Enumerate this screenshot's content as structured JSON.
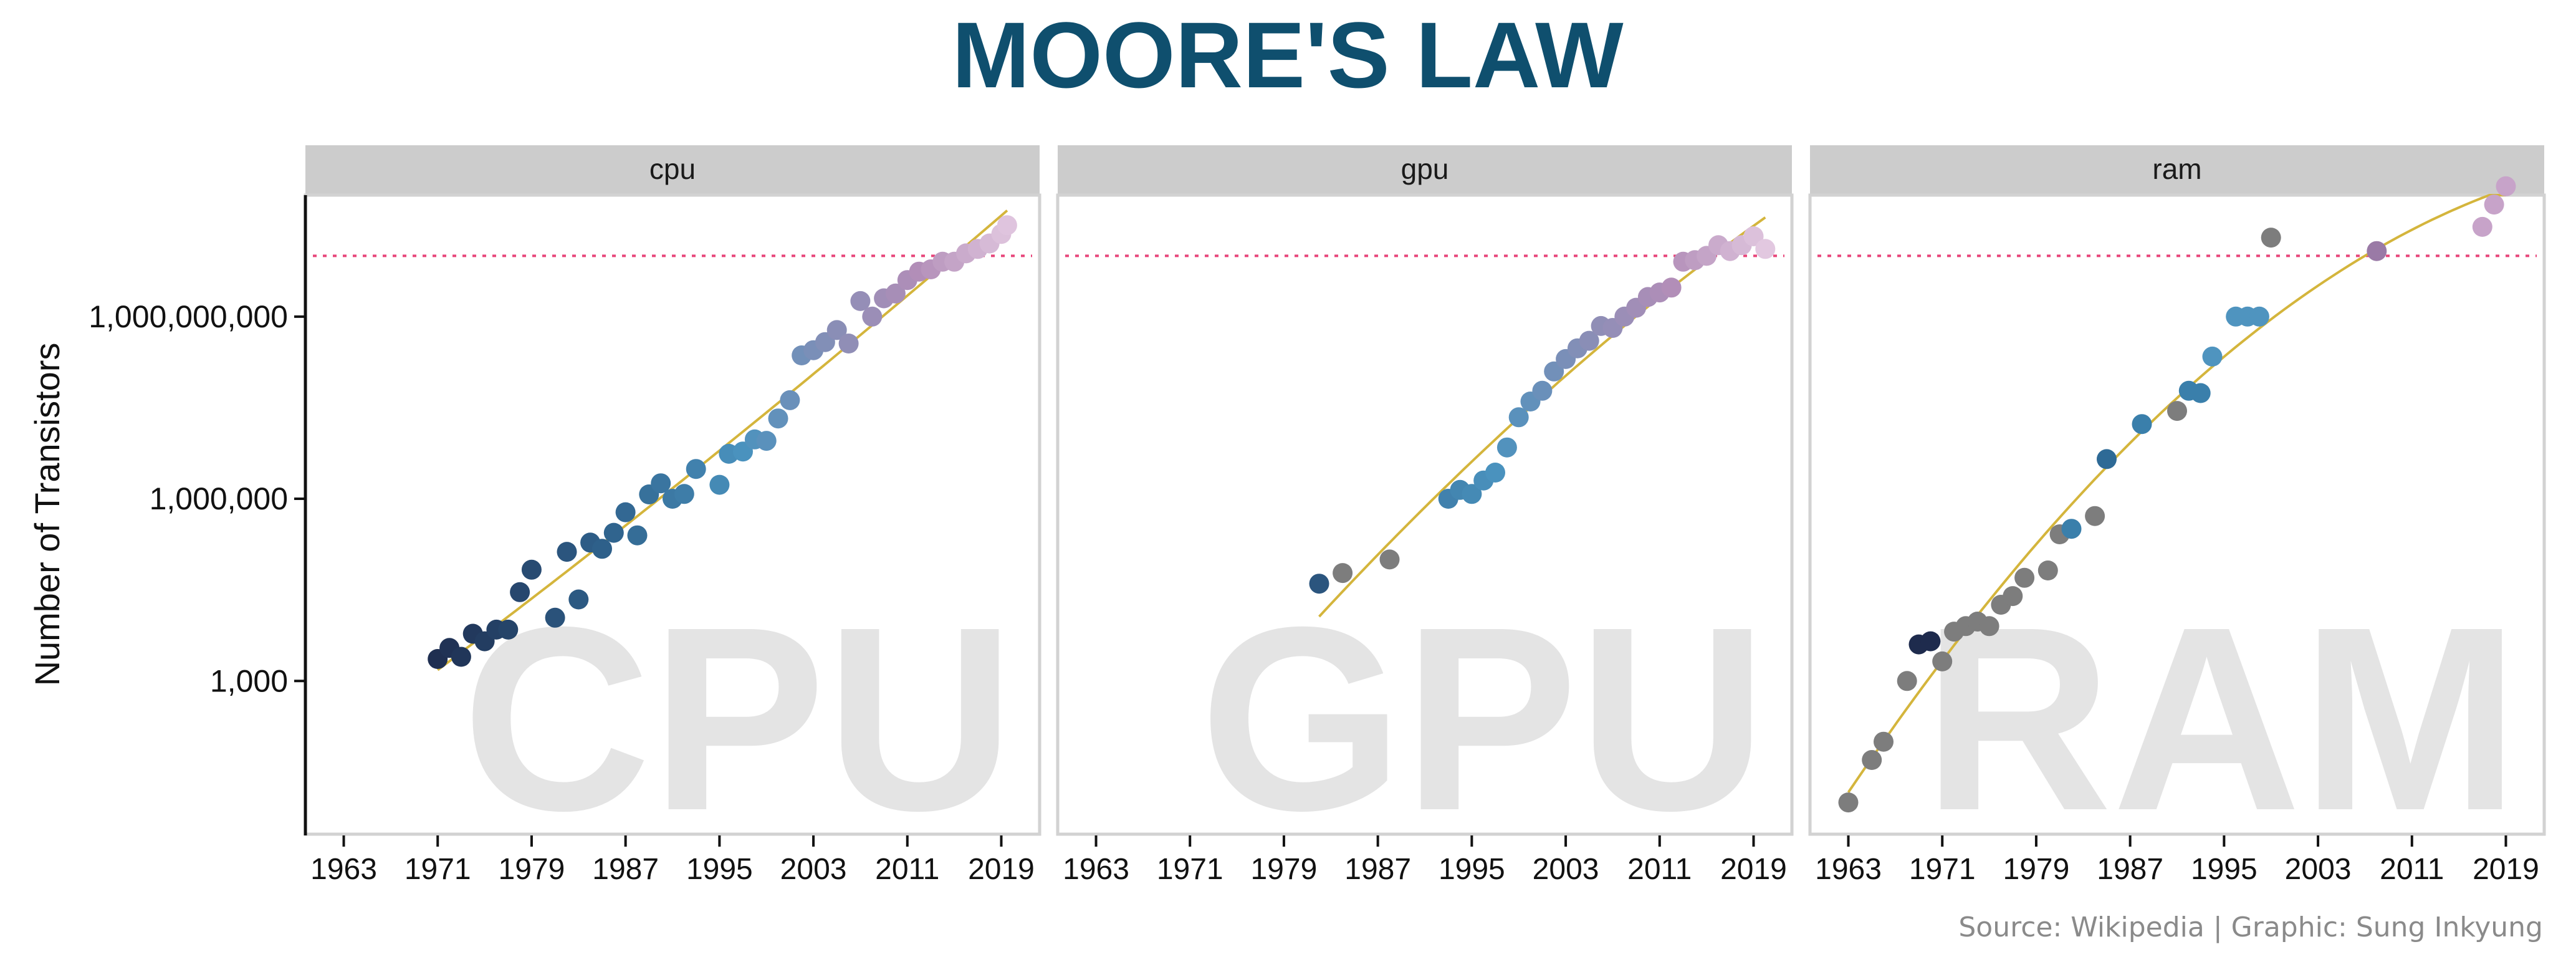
{
  "title": "MOORE'S LAW",
  "caption": "Source: Wikipedia | Graphic: Sung Inkyung",
  "colors": {
    "title": "#0f4f6e",
    "fit": "#d4b53c",
    "reference": "#e8457a",
    "strip": "#cccccc",
    "watermark": "#e4e4e4"
  },
  "chart_data": {
    "type": "scatter",
    "ylabel": "Number of Transistors",
    "xlabel": "",
    "y_scale": "log10",
    "ylim": [
      3,
      100000000000.0
    ],
    "xlim": [
      1960,
      2022
    ],
    "x_ticks": [
      1963,
      1971,
      1979,
      1987,
      1995,
      2003,
      2011,
      2019
    ],
    "y_ticks": [
      1000,
      1000000,
      1000000000
    ],
    "y_tick_labels": [
      "1,000",
      "1,000,000",
      "1,000,000,000"
    ],
    "reference_line": 10000000000,
    "panels": [
      {
        "name": "cpu",
        "watermark": "CPU",
        "points": [
          [
            1971,
            2300
          ],
          [
            1972,
            3500
          ],
          [
            1973,
            2500
          ],
          [
            1974,
            6000
          ],
          [
            1975,
            4500
          ],
          [
            1976,
            7000
          ],
          [
            1977,
            7000
          ],
          [
            1978,
            29000
          ],
          [
            1979,
            68000
          ],
          [
            1981,
            11000
          ],
          [
            1982,
            134000
          ],
          [
            1983,
            22000
          ],
          [
            1984,
            190000
          ],
          [
            1985,
            150000
          ],
          [
            1986,
            275000
          ],
          [
            1987,
            600000
          ],
          [
            1988,
            250000
          ],
          [
            1989,
            1180000
          ],
          [
            1990,
            1800000
          ],
          [
            1991,
            1000000
          ],
          [
            1992,
            1200000
          ],
          [
            1993,
            3100000
          ],
          [
            1995,
            1700000
          ],
          [
            1995.8,
            5500000
          ],
          [
            1997,
            6000000
          ],
          [
            1998,
            9500000
          ],
          [
            1999,
            9000000
          ],
          [
            2000,
            21000000
          ],
          [
            2001,
            42000000
          ],
          [
            2002,
            230000000
          ],
          [
            2003,
            280000000
          ],
          [
            2004,
            380000000
          ],
          [
            2005,
            600000000
          ],
          [
            2006,
            360000000
          ],
          [
            2007,
            1800000000
          ],
          [
            2008,
            1000000000
          ],
          [
            2009,
            2000000000
          ],
          [
            2010,
            2400000000
          ],
          [
            2011,
            4000000000
          ],
          [
            2012,
            5500000000
          ],
          [
            2013,
            6000000000
          ],
          [
            2014,
            8000000000
          ],
          [
            2015,
            8000000000
          ],
          [
            2016,
            11000000000
          ],
          [
            2017,
            13000000000
          ],
          [
            2018,
            16000000000
          ],
          [
            2019,
            23000000000
          ],
          [
            2019.5,
            32000000000
          ]
        ]
      },
      {
        "name": "gpu",
        "watermark": "GPU",
        "points": [
          [
            1982,
            40000
          ],
          [
            1984,
            60000
          ],
          [
            1988,
            100000
          ],
          [
            1993,
            1000000
          ],
          [
            1994,
            1400000
          ],
          [
            1995,
            1200000
          ],
          [
            1996,
            2000000
          ],
          [
            1997,
            2700000
          ],
          [
            1998,
            7000000
          ],
          [
            1999,
            22000000
          ],
          [
            2000,
            40000000
          ],
          [
            2001,
            60000000
          ],
          [
            2002,
            125000000
          ],
          [
            2003,
            200000000
          ],
          [
            2004,
            300000000
          ],
          [
            2005,
            400000000
          ],
          [
            2006,
            700000000
          ],
          [
            2007,
            650000000
          ],
          [
            2008,
            1000000000
          ],
          [
            2009,
            1400000000
          ],
          [
            2010,
            2100000000
          ],
          [
            2011,
            2500000000
          ],
          [
            2012,
            3000000000
          ],
          [
            2013,
            8000000000
          ],
          [
            2014,
            8500000000
          ],
          [
            2015,
            10000000000
          ],
          [
            2016,
            15000000000
          ],
          [
            2017,
            12000000000
          ],
          [
            2018,
            15000000000
          ],
          [
            2019,
            21000000000
          ],
          [
            2020,
            13000000000
          ]
        ]
      },
      {
        "name": "ram",
        "watermark": "RAM",
        "points": [
          [
            1963,
            10
          ],
          [
            1965,
            50
          ],
          [
            1966,
            100
          ],
          [
            1968,
            1000
          ],
          [
            1969,
            4000
          ],
          [
            1970,
            4500
          ],
          [
            1971,
            2100
          ],
          [
            1972,
            6500
          ],
          [
            1973,
            8000
          ],
          [
            1974,
            9500
          ],
          [
            1975,
            8000
          ],
          [
            1976,
            18000
          ],
          [
            1977,
            25000
          ],
          [
            1978,
            50000
          ],
          [
            1980,
            66000
          ],
          [
            1981,
            260000
          ],
          [
            1982,
            320000
          ],
          [
            1984,
            520000
          ],
          [
            1985,
            4500000
          ],
          [
            1988,
            17000000
          ],
          [
            1991,
            28000000
          ],
          [
            1992,
            60000000
          ],
          [
            1993,
            55000000
          ],
          [
            1994,
            220000000
          ],
          [
            1996,
            1000000000
          ],
          [
            1997,
            1000000000
          ],
          [
            1998,
            1000000000
          ],
          [
            1999,
            20000000000
          ],
          [
            2008,
            12000000000
          ],
          [
            2017,
            30000000000
          ],
          [
            2018,
            70000000000
          ],
          [
            2019,
            140000000000
          ]
        ]
      }
    ]
  }
}
